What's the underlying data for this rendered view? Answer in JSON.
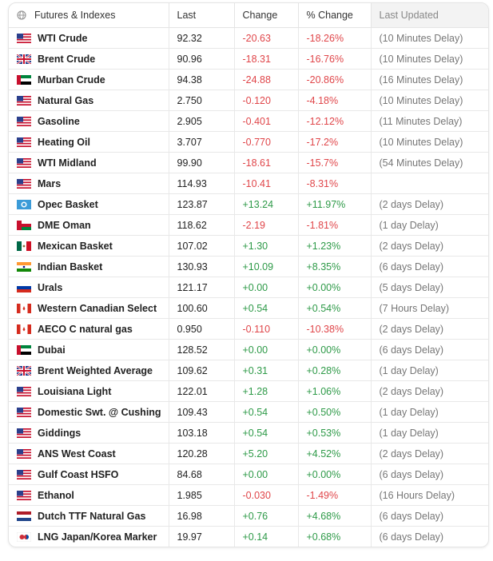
{
  "header": [
    "Futures & Indexes",
    "Last",
    "Change",
    "% Change",
    "Last Updated"
  ],
  "rows": [
    [
      "WTI Crude",
      "92.32",
      "-20.63",
      "-18.26%",
      "(10 Minutes Delay)"
    ],
    [
      "Brent Crude",
      "90.96",
      "-18.31",
      "-16.76%",
      "(10 Minutes Delay)"
    ],
    [
      "Murban Crude",
      "94.38",
      "-24.88",
      "-20.86%",
      "(16 Minutes Delay)"
    ],
    [
      "Natural Gas",
      "2.750",
      "-0.120",
      "-4.18%",
      "(10 Minutes Delay)"
    ],
    [
      "Gasoline",
      "2.905",
      "-0.401",
      "-12.12%",
      "(11 Minutes Delay)"
    ],
    [
      "Heating Oil",
      "3.707",
      "-0.770",
      "-17.2%",
      "(10 Minutes Delay)"
    ],
    [
      "WTI Midland",
      "99.90",
      "-18.61",
      "-15.7%",
      "(54 Minutes Delay)"
    ],
    [
      "Mars",
      "114.93",
      "-10.41",
      "-8.31%",
      null
    ],
    [
      "Opec Basket",
      "123.87",
      "+13.24",
      "+11.97%",
      "(2 days Delay)"
    ],
    [
      "DME Oman",
      "118.62",
      "-2.19",
      "-1.81%",
      "(1 day Delay)"
    ],
    [
      "Mexican Basket",
      "107.02",
      "+1.30",
      "+1.23%",
      "(2 days Delay)"
    ],
    [
      "Indian Basket",
      "130.93",
      "+10.09",
      "+8.35%",
      "(6 days Delay)"
    ],
    [
      "Urals",
      "121.17",
      "+0.00",
      "+0.00%",
      "(5 days Delay)"
    ],
    [
      "Western Canadian Select",
      "100.60",
      "+0.54",
      "+0.54%",
      "(7 Hours Delay)"
    ],
    [
      "AECO C natural gas",
      "0.950",
      "-0.110",
      "-10.38%",
      "(2 days Delay)"
    ],
    [
      "Dubai",
      "128.52",
      "+0.00",
      "+0.00%",
      "(6 days Delay)"
    ],
    [
      "Brent Weighted Average",
      "109.62",
      "+0.31",
      "+0.28%",
      "(1 day Delay)"
    ],
    [
      "Louisiana Light",
      "122.01",
      "+1.28",
      "+1.06%",
      "(2 days Delay)"
    ],
    [
      "Domestic Swt. @ Cushing",
      "109.43",
      "+0.54",
      "+0.50%",
      "(1 day Delay)"
    ],
    [
      "Giddings",
      "103.18",
      "+0.54",
      "+0.53%",
      "(1 day Delay)"
    ],
    [
      "ANS West Coast",
      "120.28",
      "+5.20",
      "+4.52%",
      "(2 days Delay)"
    ],
    [
      "Gulf Coast HSFO",
      "84.68",
      "+0.00",
      "+0.00%",
      "(6 days Delay)"
    ],
    [
      "Ethanol",
      "1.985",
      "-0.030",
      "-1.49%",
      "(16 Hours Delay)"
    ],
    [
      "Dutch TTF Natural Gas",
      "16.98",
      "+0.76",
      "+4.68%",
      "(6 days Delay)"
    ],
    [
      "LNG Japan/Korea Marker",
      "19.97",
      "+0.14",
      "+0.68%",
      "(6 days Delay)"
    ]
  ]
}
